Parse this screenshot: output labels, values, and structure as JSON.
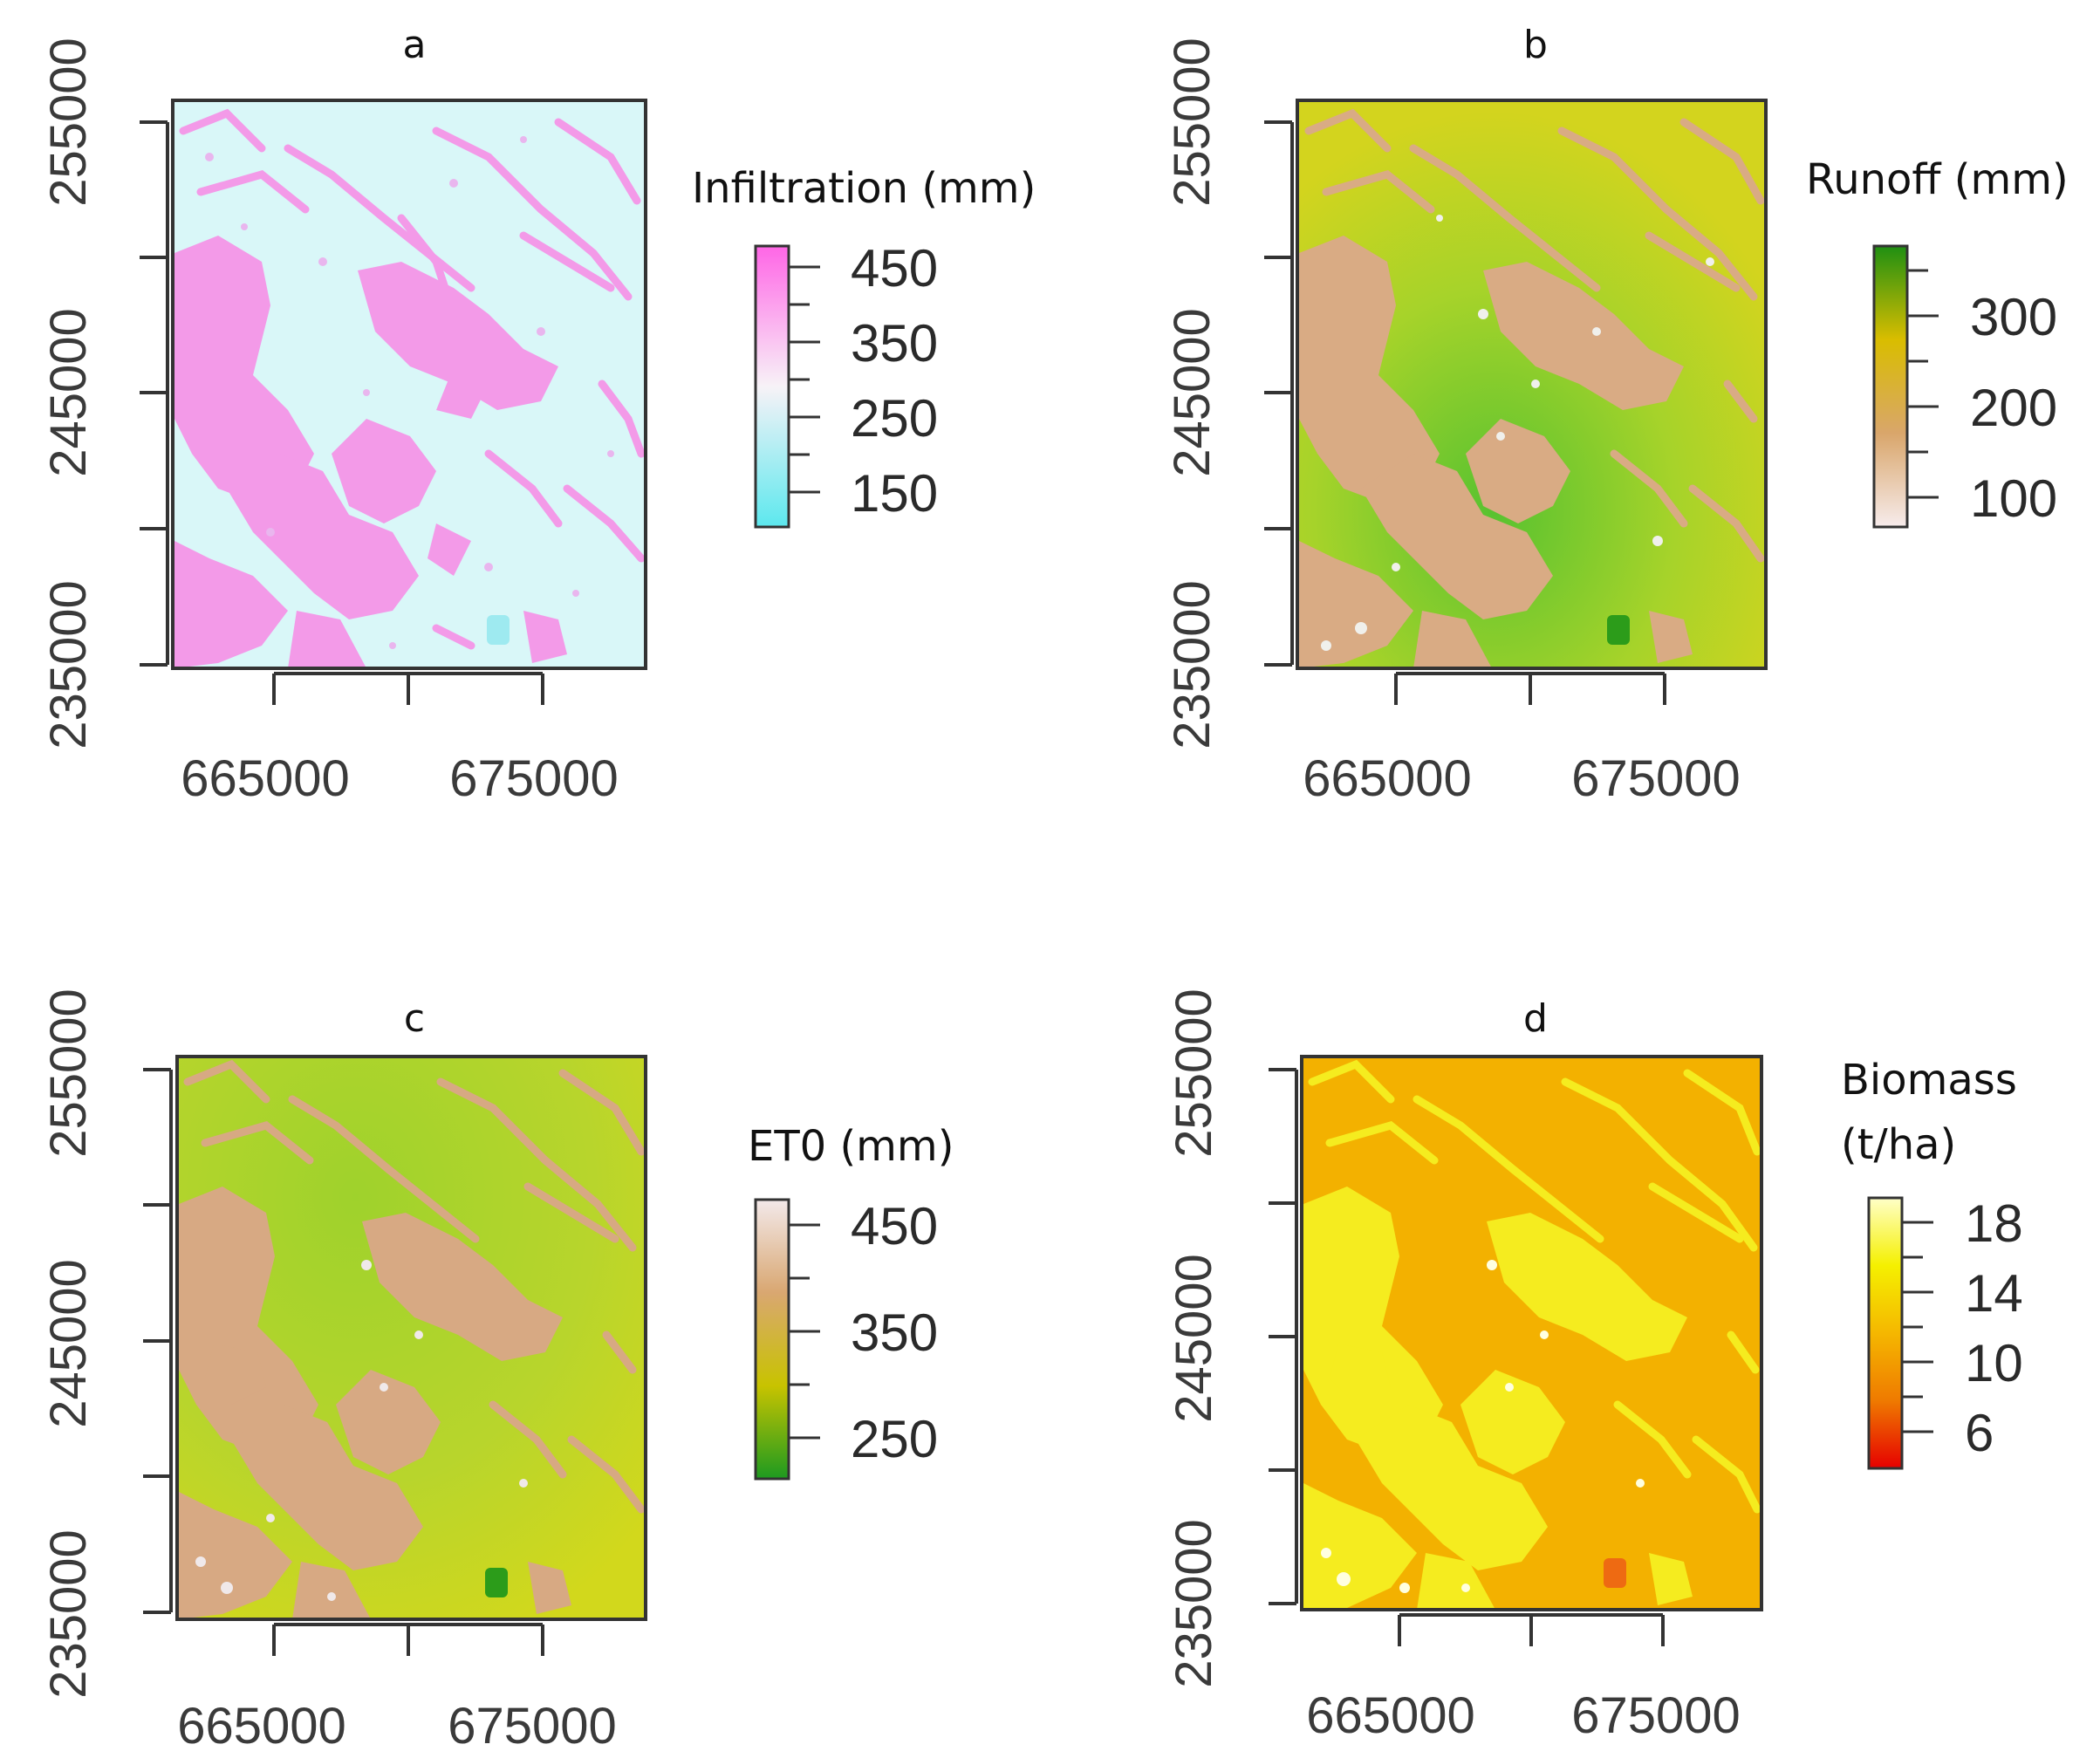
{
  "panels": [
    {
      "id": "a",
      "title": "a",
      "legend_title": [
        "Infiltration (mm)"
      ],
      "legend_ticks": [
        "450",
        "350",
        "250",
        "150"
      ],
      "legend_colors": [
        "#ff66e6",
        "#f7f2f7",
        "#5ce8ee"
      ],
      "background_color": "#d9f7f8",
      "patch_color": "#f39ae8",
      "speck_color": "#e9b6ee",
      "patch_style": "pink"
    },
    {
      "id": "b",
      "title": "b",
      "legend_title": [
        "Runoff (mm)"
      ],
      "legend_ticks": [
        "300",
        "200",
        "100"
      ],
      "legend_colors": [
        "#1f8f12",
        "#d9bd00",
        "#d9a66b",
        "#f7ecec"
      ],
      "background_color": "#b8d52a",
      "patch_color": "#d9ab84",
      "speck_color": "#f0f0ec",
      "patch_style": "tan"
    },
    {
      "id": "c",
      "title": "c",
      "legend_title": [
        "ET0 (mm)"
      ],
      "legend_ticks": [
        "450",
        "350",
        "250"
      ],
      "legend_colors": [
        "#f3e9ea",
        "#d9a771",
        "#c8c300",
        "#1d9a20"
      ],
      "background_color": "#b9d52c",
      "patch_color": "#d7a983",
      "speck_color": "#f0e9ea",
      "patch_style": "tan"
    },
    {
      "id": "d",
      "title": "d",
      "legend_title": [
        "Biomass",
        "(t/ha)"
      ],
      "legend_ticks": [
        "18",
        "14",
        "10",
        "6"
      ],
      "legend_colors": [
        "#ffffc8",
        "#f5f000",
        "#f5b700",
        "#ef7a00",
        "#e60000"
      ],
      "background_color": "#f3b100",
      "patch_color": "#f5ec1f",
      "speck_color": "#ffffe0",
      "patch_style": "yellow"
    }
  ],
  "axes": {
    "x_ticks": [
      "665000",
      "675000"
    ],
    "y_ticks": [
      "255000",
      "245000",
      "235000"
    ]
  },
  "colors": {
    "frame": "#333333",
    "outlier_dot": "#2c9c1a",
    "outlier_dot_a": "#9eeaf0",
    "outlier_dot_d": "#ee6a12"
  }
}
